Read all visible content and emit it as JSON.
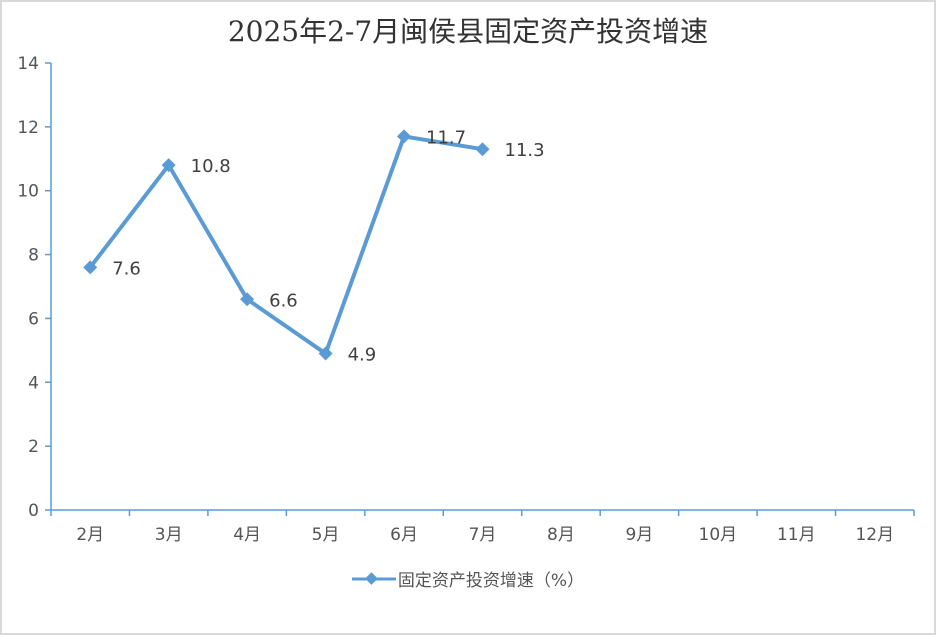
{
  "chart_data": {
    "type": "line",
    "title": "2025年2-7月闽侯县固定资产投资增速",
    "categories": [
      "2月",
      "3月",
      "4月",
      "5月",
      "6月",
      "7月",
      "8月",
      "9月",
      "10月",
      "11月",
      "12月"
    ],
    "series": [
      {
        "name": "固定资产投资增速（%）",
        "values": [
          7.6,
          10.8,
          6.6,
          4.9,
          11.7,
          11.3,
          null,
          null,
          null,
          null,
          null
        ]
      }
    ],
    "yticks": [
      "0",
      "2",
      "4",
      "6",
      "8",
      "10",
      "12",
      "14"
    ],
    "ylim": [
      0,
      14
    ],
    "marker": "diamond",
    "legend_position": "bottom",
    "grid": false,
    "colors": {
      "series": "#5b9bd5",
      "axis": "#5b9bd5"
    }
  }
}
